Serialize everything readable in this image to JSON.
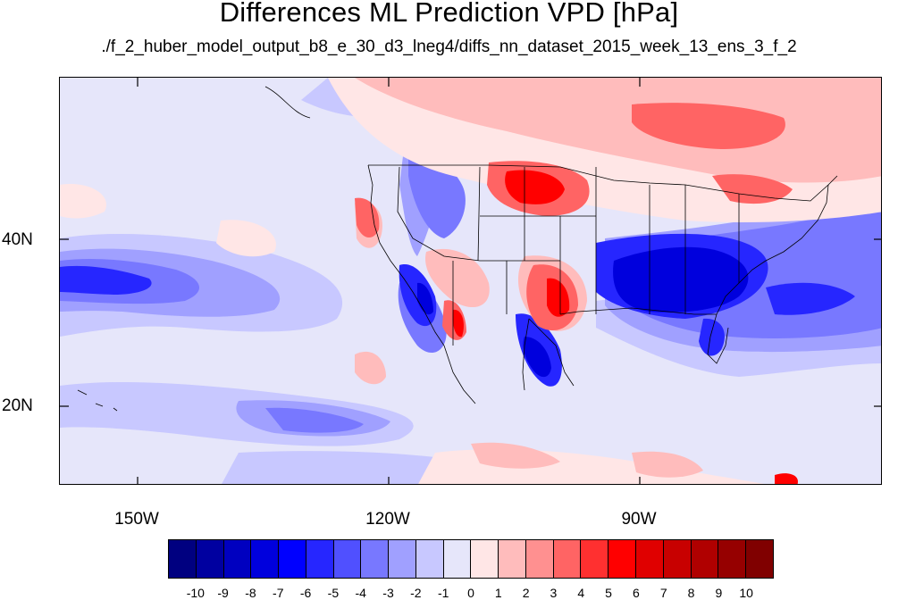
{
  "title": "Differences ML Prediction VPD [hPa]",
  "subtitle": "./f_2_huber_model_output_b8_e_30_d3_lneg4/diffs_nn_dataset_2015_week_13_ens_3_f_2",
  "map": {
    "background_color": "#e6e6fa",
    "lat_labels": [
      {
        "text": "40N",
        "lat": 40
      },
      {
        "text": "20N",
        "lat": 20
      }
    ],
    "lon_labels": [
      {
        "text": "150W",
        "lon": -150
      },
      {
        "text": "120W",
        "lon": -120
      },
      {
        "text": "90W",
        "lon": -90
      }
    ],
    "extent": {
      "lon_min": -159.5,
      "lon_max": -61,
      "lat_min": 10.5,
      "lat_max": 59.5
    }
  },
  "colorbar": {
    "colors": [
      "#000080",
      "#0000a0",
      "#0000c0",
      "#0000dd",
      "#0000ff",
      "#2626ff",
      "#5050ff",
      "#7878ff",
      "#a0a0ff",
      "#c8c8ff",
      "#e6e6fa",
      "#ffe6e6",
      "#ffbcbc",
      "#ff9090",
      "#ff6464",
      "#ff3030",
      "#ff0000",
      "#e00000",
      "#c80000",
      "#b00000",
      "#960000",
      "#800000"
    ],
    "labels": [
      "-10",
      "-9",
      "-8",
      "-7",
      "-6",
      "-5",
      "-4",
      "-3",
      "-2",
      "-1",
      "0",
      "1",
      "2",
      "3",
      "4",
      "5",
      "6",
      "7",
      "8",
      "9",
      "10"
    ]
  }
}
